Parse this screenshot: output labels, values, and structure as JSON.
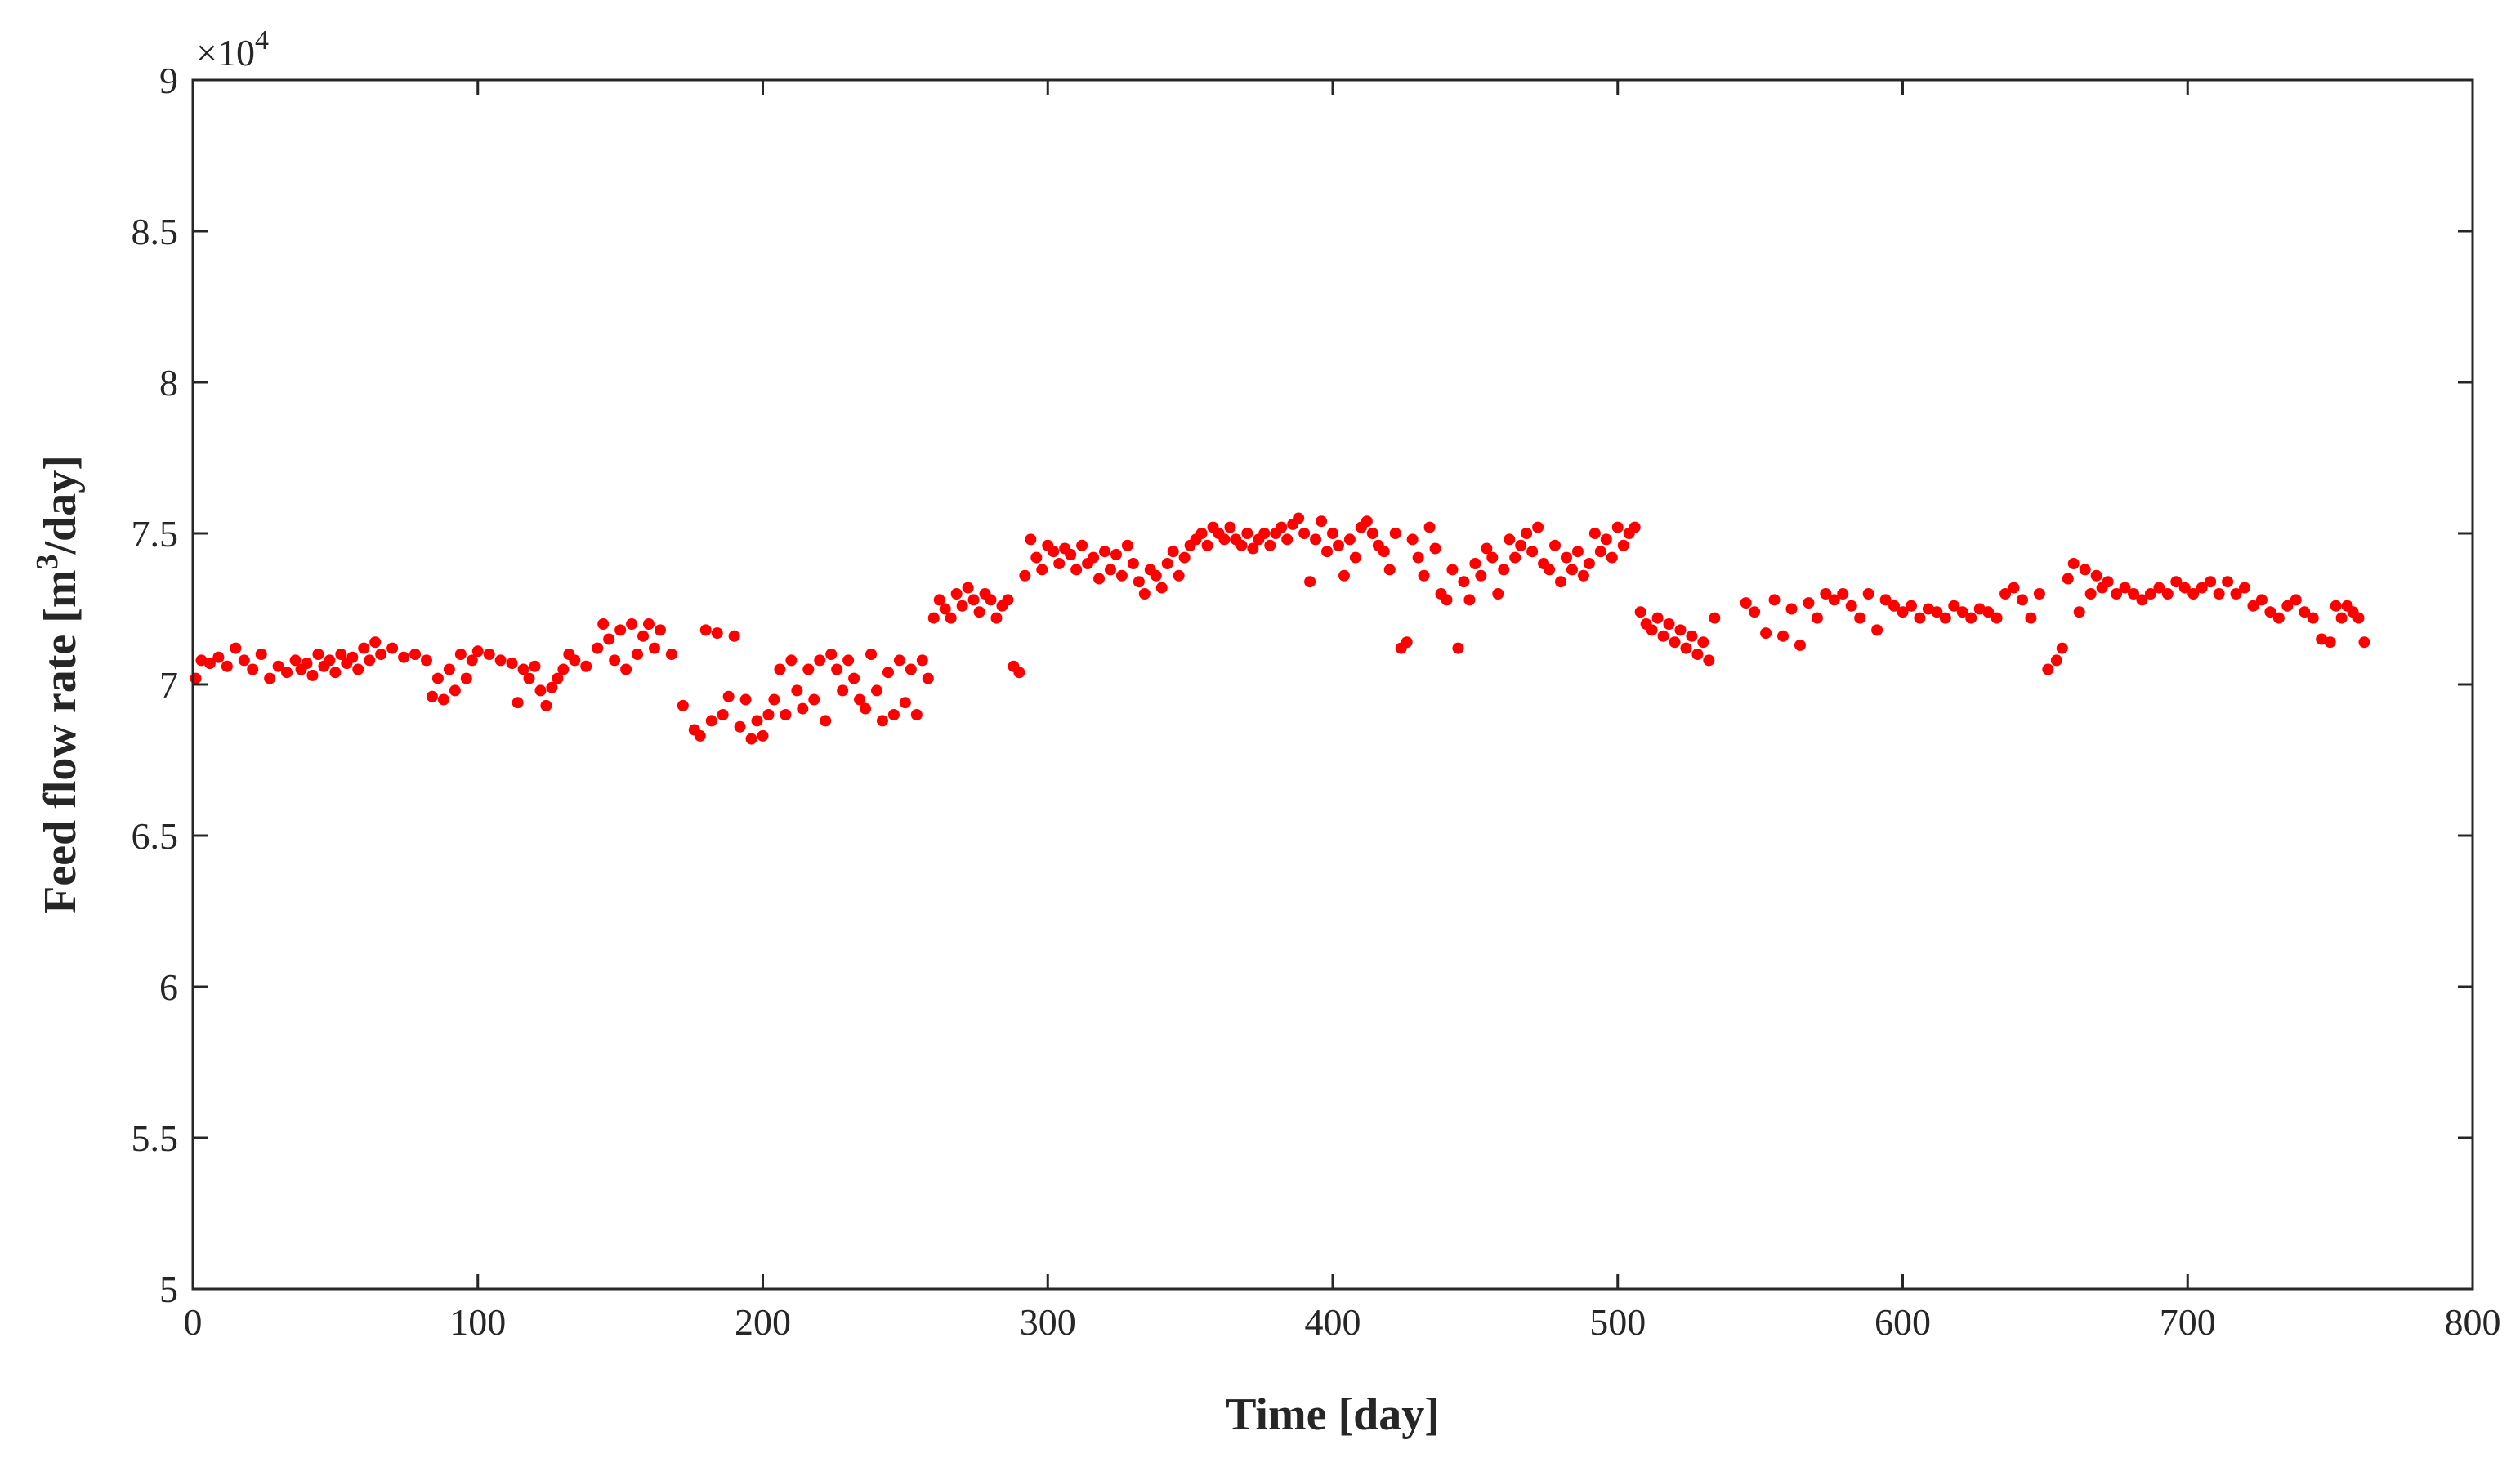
{
  "chart_data": {
    "type": "scatter",
    "xlabel": "Time [day]",
    "ylabel_main": "Feed flow rate [m",
    "ylabel_sup": "3",
    "ylabel_end": "/day]",
    "y_exponent_prefix": "×10",
    "y_exponent_power": "4",
    "xlim": [
      0,
      800
    ],
    "ylim": [
      5,
      9
    ],
    "x_ticks": [
      0,
      100,
      200,
      300,
      400,
      500,
      600,
      700,
      800
    ],
    "x_tick_labels": [
      "0",
      "100",
      "200",
      "300",
      "400",
      "500",
      "600",
      "700",
      "800"
    ],
    "y_ticks": [
      5,
      5.5,
      6,
      6.5,
      7,
      7.5,
      8,
      8.5,
      9
    ],
    "y_tick_labels": [
      "5",
      "5.5",
      "6",
      "6.5",
      "7",
      "7.5",
      "8",
      "8.5",
      "9"
    ],
    "grid": false,
    "marker_color": "#ff0000",
    "series": [
      {
        "x": [
          1,
          3,
          6,
          9,
          12,
          15,
          18,
          21,
          24,
          27,
          30,
          33,
          36,
          38,
          40,
          42,
          44,
          46,
          48,
          50,
          52,
          54,
          56,
          58,
          60,
          62,
          64,
          66,
          70,
          74,
          78,
          82,
          84,
          86,
          88,
          90,
          92,
          94,
          96,
          98,
          100,
          104,
          108,
          112,
          114,
          116,
          118,
          120,
          122,
          124,
          126,
          128,
          130,
          132,
          134,
          138,
          142,
          144,
          146,
          148,
          150,
          152,
          154,
          156,
          158,
          160,
          162,
          164,
          168,
          172,
          176,
          178,
          180,
          182,
          184,
          186,
          188,
          190,
          192,
          194,
          196,
          198,
          200,
          202,
          204,
          206,
          208,
          210,
          212,
          214,
          216,
          218,
          220,
          222,
          224,
          226,
          228,
          230,
          232,
          234,
          236,
          238,
          240,
          242,
          244,
          246,
          248,
          250,
          252,
          254,
          256,
          258,
          260,
          262,
          264,
          266,
          268,
          270,
          272,
          274,
          276,
          278,
          280,
          282,
          284,
          286,
          288,
          290,
          292,
          294,
          296,
          298,
          300,
          302,
          304,
          306,
          308,
          310,
          312,
          314,
          316,
          318,
          320,
          322,
          324,
          326,
          328,
          330,
          332,
          334,
          336,
          338,
          340,
          342,
          344,
          346,
          348,
          350,
          352,
          354,
          356,
          358,
          360,
          362,
          364,
          366,
          368,
          370,
          372,
          374,
          376,
          378,
          380,
          382,
          384,
          386,
          388,
          390,
          392,
          394,
          396,
          398,
          400,
          402,
          404,
          406,
          408,
          410,
          412,
          414,
          416,
          418,
          420,
          422,
          424,
          426,
          428,
          430,
          432,
          434,
          436,
          438,
          440,
          442,
          444,
          446,
          448,
          450,
          452,
          454,
          456,
          458,
          460,
          462,
          464,
          466,
          468,
          470,
          472,
          474,
          476,
          478,
          480,
          482,
          484,
          486,
          488,
          490,
          492,
          494,
          496,
          498,
          500,
          502,
          504,
          506,
          508,
          510,
          512,
          514,
          516,
          518,
          520,
          522,
          524,
          526,
          528,
          530,
          532,
          534,
          545,
          548,
          552,
          555,
          558,
          561,
          564,
          567,
          570,
          573,
          576,
          579,
          582,
          585,
          588,
          591,
          594,
          597,
          600,
          603,
          606,
          609,
          612,
          615,
          618,
          621,
          624,
          627,
          630,
          633,
          636,
          639,
          642,
          645,
          648,
          651,
          654,
          656,
          658,
          660,
          662,
          664,
          666,
          668,
          670,
          672,
          675,
          678,
          681,
          684,
          687,
          690,
          693,
          696,
          699,
          702,
          705,
          708,
          711,
          714,
          717,
          720,
          723,
          726,
          729,
          732,
          735,
          738,
          741,
          744,
          747,
          750,
          752,
          754,
          756,
          758,
          760,
          762
        ],
        "y": [
          7.02,
          7.08,
          7.07,
          7.09,
          7.06,
          7.12,
          7.08,
          7.05,
          7.1,
          7.02,
          7.06,
          7.04,
          7.08,
          7.05,
          7.07,
          7.03,
          7.1,
          7.06,
          7.08,
          7.04,
          7.1,
          7.07,
          7.09,
          7.05,
          7.12,
          7.08,
          7.14,
          7.1,
          7.12,
          7.09,
          7.1,
          7.08,
          6.96,
          7.02,
          6.95,
          7.05,
          6.98,
          7.1,
          7.02,
          7.08,
          7.11,
          7.1,
          7.08,
          7.07,
          6.94,
          7.05,
          7.02,
          7.06,
          6.98,
          6.93,
          6.99,
          7.02,
          7.05,
          7.1,
          7.08,
          7.06,
          7.12,
          7.2,
          7.15,
          7.08,
          7.18,
          7.05,
          7.2,
          7.1,
          7.16,
          7.2,
          7.12,
          7.18,
          7.1,
          6.93,
          6.85,
          6.83,
          7.18,
          6.88,
          7.17,
          6.9,
          6.96,
          7.16,
          6.86,
          6.95,
          6.82,
          6.88,
          6.83,
          6.9,
          6.95,
          7.05,
          6.9,
          7.08,
          6.98,
          6.92,
          7.05,
          6.95,
          7.08,
          6.88,
          7.1,
          7.05,
          6.98,
          7.08,
          7.02,
          6.95,
          6.92,
          7.1,
          6.98,
          6.88,
          7.04,
          6.9,
          7.08,
          6.94,
          7.05,
          6.9,
          7.08,
          7.02,
          7.22,
          7.28,
          7.25,
          7.22,
          7.3,
          7.26,
          7.32,
          7.28,
          7.24,
          7.3,
          7.28,
          7.22,
          7.26,
          7.28,
          7.06,
          7.04,
          7.36,
          7.48,
          7.42,
          7.38,
          7.46,
          7.44,
          7.4,
          7.45,
          7.43,
          7.38,
          7.46,
          7.4,
          7.42,
          7.35,
          7.44,
          7.38,
          7.43,
          7.36,
          7.46,
          7.4,
          7.34,
          7.3,
          7.38,
          7.36,
          7.32,
          7.4,
          7.44,
          7.36,
          7.42,
          7.46,
          7.48,
          7.5,
          7.46,
          7.52,
          7.5,
          7.48,
          7.52,
          7.48,
          7.46,
          7.5,
          7.45,
          7.48,
          7.5,
          7.46,
          7.5,
          7.52,
          7.48,
          7.53,
          7.55,
          7.5,
          7.34,
          7.48,
          7.54,
          7.44,
          7.5,
          7.46,
          7.36,
          7.48,
          7.42,
          7.52,
          7.54,
          7.5,
          7.46,
          7.44,
          7.38,
          7.5,
          7.12,
          7.14,
          7.48,
          7.42,
          7.36,
          7.52,
          7.45,
          7.3,
          7.28,
          7.38,
          7.12,
          7.34,
          7.28,
          7.4,
          7.36,
          7.45,
          7.42,
          7.3,
          7.38,
          7.48,
          7.42,
          7.46,
          7.5,
          7.44,
          7.52,
          7.4,
          7.38,
          7.46,
          7.34,
          7.42,
          7.38,
          7.44,
          7.36,
          7.4,
          7.5,
          7.44,
          7.48,
          7.42,
          7.52,
          7.46,
          7.5,
          7.52,
          7.24,
          7.2,
          7.18,
          7.22,
          7.16,
          7.2,
          7.14,
          7.18,
          7.12,
          7.16,
          7.1,
          7.14,
          7.08,
          7.22,
          7.27,
          7.24,
          7.17,
          7.28,
          7.16,
          7.25,
          7.13,
          7.27,
          7.22,
          7.3,
          7.28,
          7.3,
          7.26,
          7.22,
          7.3,
          7.18,
          7.28,
          7.26,
          7.24,
          7.26,
          7.22,
          7.25,
          7.24,
          7.22,
          7.26,
          7.24,
          7.22,
          7.25,
          7.24,
          7.22,
          7.3,
          7.32,
          7.28,
          7.22,
          7.3,
          7.05,
          7.08,
          7.12,
          7.35,
          7.4,
          7.24,
          7.38,
          7.3,
          7.36,
          7.32,
          7.34,
          7.3,
          7.32,
          7.3,
          7.28,
          7.3,
          7.32,
          7.3,
          7.34,
          7.32,
          7.3,
          7.32,
          7.34,
          7.3,
          7.34,
          7.3,
          7.32,
          7.26,
          7.28,
          7.24,
          7.22,
          7.26,
          7.28,
          7.24,
          7.22,
          7.15,
          7.14,
          7.26,
          7.22,
          7.26,
          7.24,
          7.22,
          7.14
        ]
      }
    ]
  }
}
